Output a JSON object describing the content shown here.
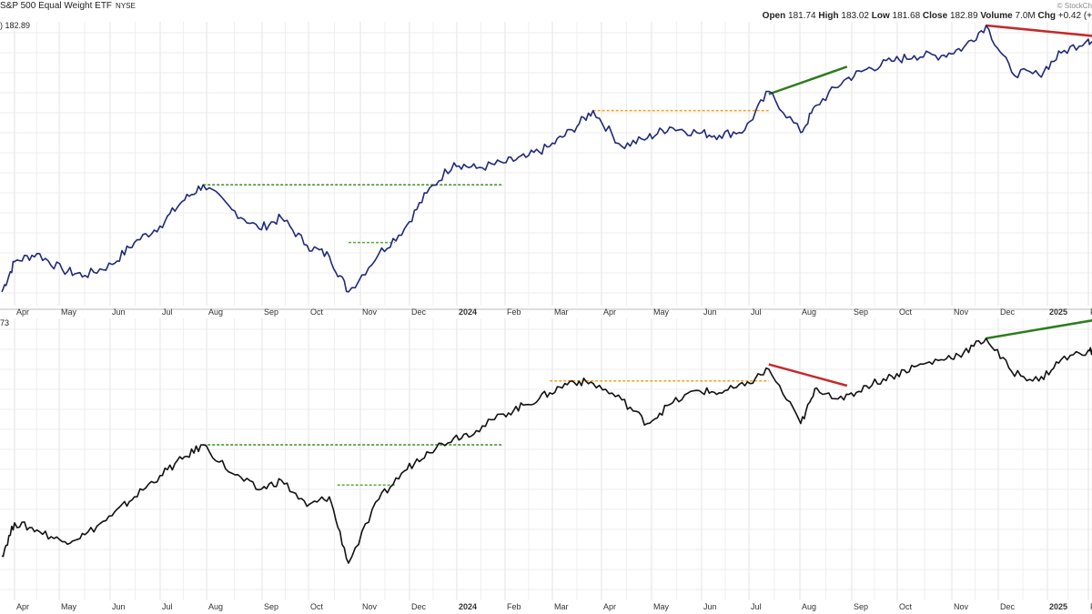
{
  "header": {
    "title": "S&P 500 Equal Weight ETF",
    "exchange": "NYSE",
    "watermark": "© StockCh",
    "open_label": "Open",
    "open": "181.74",
    "high_label": "High",
    "high": "183.02",
    "low_label": "Low",
    "low": "181.68",
    "close_label": "Close",
    "close": "182.89",
    "volume_label": "Volume",
    "volume": "7.0M",
    "chg_label": "Chg",
    "chg": "+0.42 (+",
    "last_top": ") 182.89",
    "last_bottom": "73"
  },
  "colors": {
    "top_line": "#1f2a78",
    "bottom_line": "#111111",
    "grid": "#e3e3e3",
    "green": "#2e7d1e",
    "red": "#c62828",
    "orange": "#f0a020",
    "dotted_green": "#3a8a22"
  },
  "chart_data": [
    {
      "type": "line",
      "panel": "top",
      "series_color": "#1f2a78",
      "x_tick_labels": [
        "Apr",
        "May",
        "Jun",
        "Jul",
        "Aug",
        "Sep",
        "Oct",
        "Nov",
        "Dec",
        "2024",
        "Feb",
        "Mar",
        "Apr",
        "May",
        "Jun",
        "Jul",
        "Aug",
        "Sep",
        "Oct",
        "Nov",
        "Dec",
        "2025",
        "F"
      ],
      "x": [
        "2023-03-24",
        "2023-04-01",
        "2023-04-15",
        "2023-05-01",
        "2023-05-15",
        "2023-06-01",
        "2023-06-15",
        "2023-07-01",
        "2023-07-15",
        "2023-07-28",
        "2023-08-15",
        "2023-09-01",
        "2023-09-15",
        "2023-10-01",
        "2023-10-15",
        "2023-10-27",
        "2023-11-15",
        "2023-12-01",
        "2023-12-15",
        "2024-01-01",
        "2024-01-15",
        "2024-02-01",
        "2024-02-15",
        "2024-03-01",
        "2024-03-15",
        "2024-03-28",
        "2024-04-15",
        "2024-05-01",
        "2024-05-15",
        "2024-06-01",
        "2024-06-15",
        "2024-07-01",
        "2024-07-16",
        "2024-08-05",
        "2024-08-15",
        "2024-09-01",
        "2024-09-15",
        "2024-10-01",
        "2024-10-15",
        "2024-11-01",
        "2024-11-15",
        "2024-11-29",
        "2024-12-15",
        "2025-01-01",
        "2025-01-15",
        "2025-02-01",
        "2025-02-07"
      ],
      "values": [
        0.03,
        0.14,
        0.17,
        0.11,
        0.09,
        0.13,
        0.21,
        0.27,
        0.36,
        0.42,
        0.33,
        0.26,
        0.3,
        0.2,
        0.16,
        0.03,
        0.17,
        0.26,
        0.39,
        0.5,
        0.48,
        0.5,
        0.52,
        0.56,
        0.62,
        0.69,
        0.56,
        0.59,
        0.63,
        0.61,
        0.6,
        0.62,
        0.76,
        0.61,
        0.71,
        0.8,
        0.84,
        0.87,
        0.89,
        0.89,
        0.92,
        1.0,
        0.83,
        0.82,
        0.9,
        0.95,
        0.92
      ],
      "overlays": [
        {
          "kind": "dotted",
          "color": "#3a8a22",
          "x1": "2023-07-28",
          "x2": "2024-02-01",
          "y": 0.42
        },
        {
          "kind": "dotted",
          "color": "#5aa83a",
          "x1": "2023-10-27",
          "x2": "2023-11-25",
          "y": 0.21
        },
        {
          "kind": "dotted",
          "color": "#f0a020",
          "x1": "2024-03-28",
          "x2": "2024-07-16",
          "y": 0.69
        },
        {
          "kind": "trend",
          "color": "#2e7d1e",
          "x1": "2024-07-16",
          "y1": 0.75,
          "x2": "2024-09-03",
          "y2": 0.85
        },
        {
          "kind": "trend",
          "color": "#c62828",
          "x1": "2024-11-29",
          "y1": 1.0,
          "x2": "2025-02-07",
          "y2": 0.96
        }
      ]
    },
    {
      "type": "line",
      "panel": "bottom",
      "series_color": "#111111",
      "x_tick_labels": [
        "Apr",
        "May",
        "Jun",
        "Jul",
        "Aug",
        "Sep",
        "Oct",
        "Nov",
        "Dec",
        "2024",
        "Feb",
        "Mar",
        "Apr",
        "May",
        "Jun",
        "Jul",
        "Aug",
        "Sep",
        "Oct",
        "Nov",
        "Dec",
        "2025",
        "F"
      ],
      "x": [
        "2023-03-24",
        "2023-04-01",
        "2023-04-15",
        "2023-05-01",
        "2023-05-15",
        "2023-06-01",
        "2023-06-15",
        "2023-07-01",
        "2023-07-15",
        "2023-07-28",
        "2023-08-15",
        "2023-09-01",
        "2023-09-15",
        "2023-10-01",
        "2023-10-15",
        "2023-10-27",
        "2023-11-15",
        "2023-12-01",
        "2023-12-15",
        "2024-01-01",
        "2024-01-15",
        "2024-02-01",
        "2024-02-15",
        "2024-03-01",
        "2024-03-15",
        "2024-03-28",
        "2024-04-15",
        "2024-05-01",
        "2024-05-15",
        "2024-06-01",
        "2024-06-15",
        "2024-07-01",
        "2024-07-16",
        "2024-08-05",
        "2024-08-15",
        "2024-09-01",
        "2024-09-15",
        "2024-10-01",
        "2024-10-15",
        "2024-11-01",
        "2024-11-15",
        "2024-11-29",
        "2024-12-15",
        "2025-01-01",
        "2025-01-15",
        "2025-02-01",
        "2025-02-07"
      ],
      "values": [
        0.08,
        0.22,
        0.19,
        0.14,
        0.17,
        0.25,
        0.33,
        0.42,
        0.49,
        0.55,
        0.43,
        0.36,
        0.4,
        0.29,
        0.33,
        0.05,
        0.32,
        0.44,
        0.52,
        0.58,
        0.61,
        0.68,
        0.72,
        0.77,
        0.82,
        0.81,
        0.74,
        0.64,
        0.72,
        0.78,
        0.77,
        0.8,
        0.87,
        0.64,
        0.79,
        0.74,
        0.8,
        0.84,
        0.88,
        0.91,
        0.94,
        1.0,
        0.86,
        0.82,
        0.91,
        0.95,
        0.93
      ],
      "overlays": [
        {
          "kind": "dotted",
          "color": "#3a8a22",
          "x1": "2023-07-28",
          "x2": "2024-02-01",
          "y": 0.55
        },
        {
          "kind": "dotted",
          "color": "#5aa83a",
          "x1": "2023-10-20",
          "x2": "2023-11-25",
          "y": 0.38
        },
        {
          "kind": "dotted",
          "color": "#f0a020",
          "x1": "2024-03-01",
          "x2": "2024-07-16",
          "y": 0.82
        },
        {
          "kind": "trend",
          "color": "#c62828",
          "x1": "2024-07-16",
          "y1": 0.89,
          "x2": "2024-09-03",
          "y2": 0.8
        },
        {
          "kind": "trend",
          "color": "#2e7d1e",
          "x1": "2024-11-29",
          "y1": 1.0,
          "x2": "2025-02-07",
          "y2": 1.08
        }
      ]
    }
  ]
}
